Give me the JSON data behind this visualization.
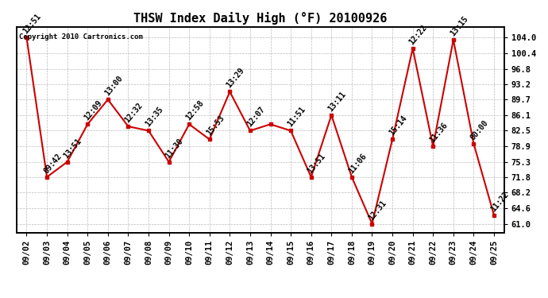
{
  "title": "THSW Index Daily High (°F) 20100926",
  "copyright": "Copyright 2010 Cartronics.com",
  "dates": [
    "09/02",
    "09/03",
    "09/04",
    "09/05",
    "09/06",
    "09/07",
    "09/08",
    "09/09",
    "09/10",
    "09/11",
    "09/12",
    "09/13",
    "09/14",
    "09/15",
    "09/16",
    "09/17",
    "09/18",
    "09/19",
    "09/20",
    "09/21",
    "09/22",
    "09/23",
    "09/24",
    "09/25"
  ],
  "values": [
    104.0,
    71.8,
    75.3,
    84.0,
    89.7,
    83.5,
    82.5,
    75.3,
    84.0,
    80.5,
    91.5,
    82.5,
    84.0,
    82.5,
    71.8,
    86.1,
    71.8,
    61.0,
    80.5,
    101.5,
    78.9,
    103.5,
    79.5,
    63.0
  ],
  "time_labels": [
    "12:51",
    "09:42",
    "13:51",
    "12:09",
    "13:00",
    "12:32",
    "13:35",
    "11:30",
    "12:58",
    "15:53",
    "13:29",
    "12:07",
    "",
    "11:51",
    "13:51",
    "13:11",
    "11:06",
    "12:31",
    "15:14",
    "12:22",
    "11:36",
    "13:15",
    "00:00",
    "11:22"
  ],
  "line_color": "#cc0000",
  "marker_color": "#cc0000",
  "bg_color": "#ffffff",
  "grid_color": "#bbbbbb",
  "title_fontsize": 11,
  "label_fontsize": 7,
  "yticks": [
    61.0,
    64.6,
    68.2,
    71.8,
    75.3,
    78.9,
    82.5,
    86.1,
    89.7,
    93.2,
    96.8,
    100.4,
    104.0
  ],
  "ylim": [
    59.0,
    106.5
  ]
}
